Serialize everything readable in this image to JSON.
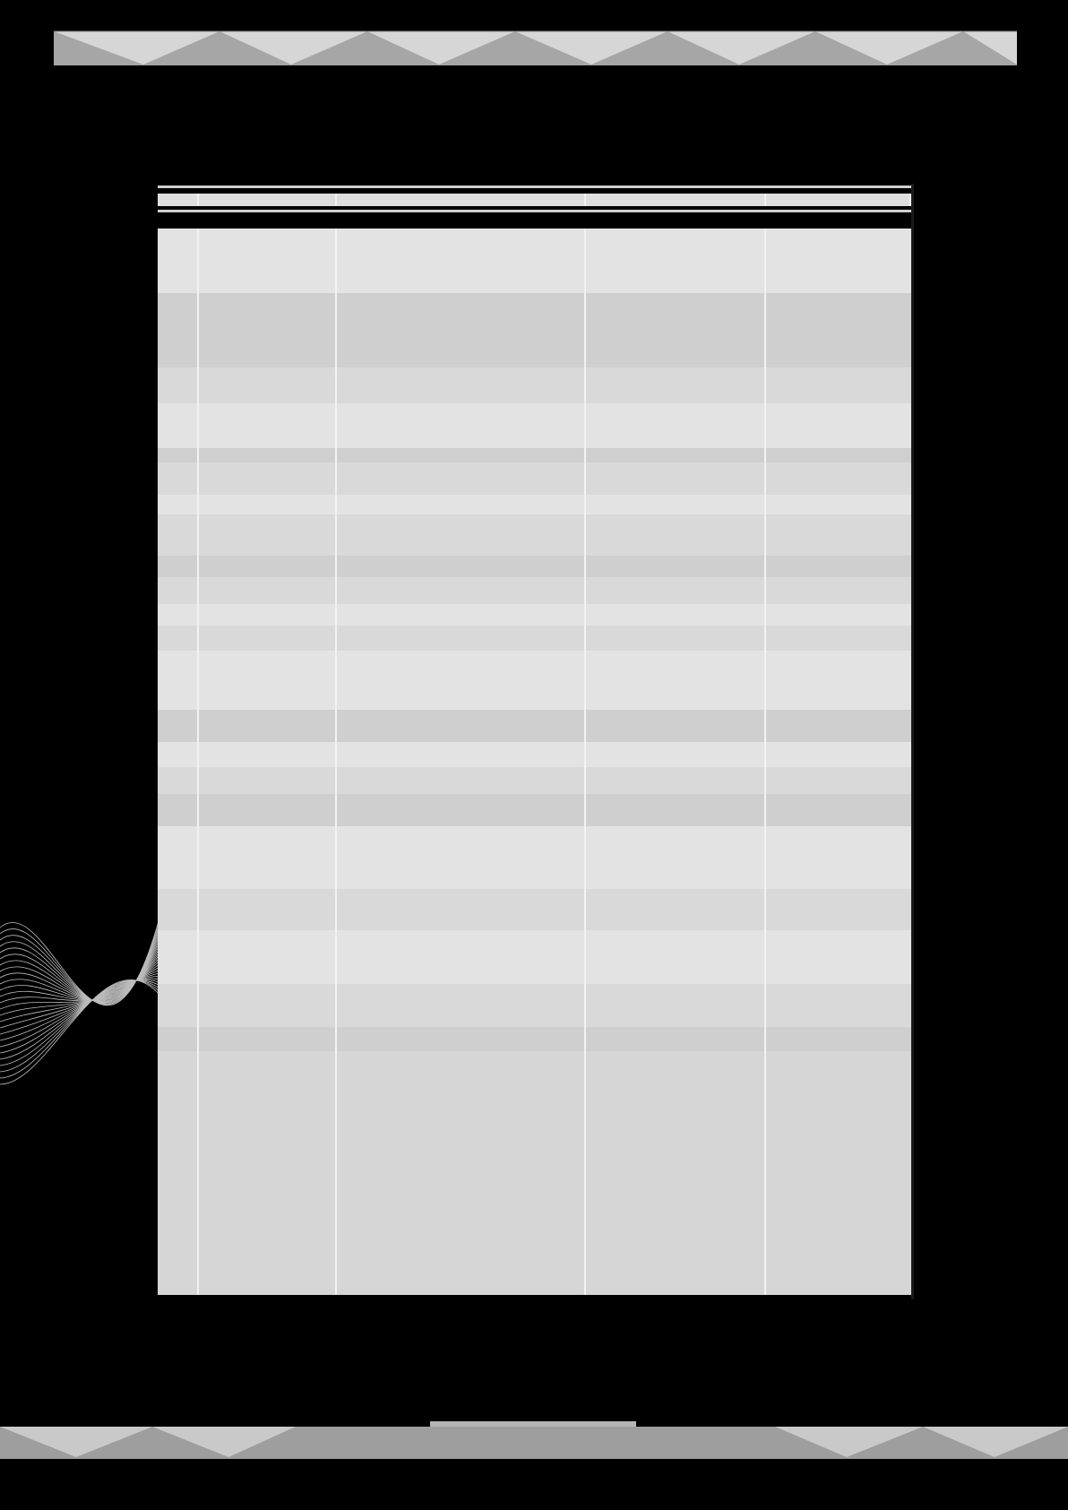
{
  "colors": {
    "background": "#000000",
    "band": "#a6a6a6",
    "band_light": "#d4d4d4",
    "table_light": "#e2e2e2",
    "table_dark": "#cfcfcf",
    "divider": "#f2f2f2"
  },
  "decor": {
    "top_band_icon": "triangle-zigzag-band",
    "bottom_band_icon": "triangle-zigzag-band",
    "corner_icon": "line-wave-pattern"
  },
  "table": {
    "columns": [
      "",
      "",
      "",
      "",
      ""
    ],
    "rows": [
      {
        "shade": "light",
        "cells": [
          "",
          "",
          "",
          "",
          ""
        ]
      },
      {
        "shade": "light",
        "cells": [
          "",
          "",
          "",
          "",
          ""
        ]
      },
      {
        "shade": "dark",
        "cells": [
          "",
          "",
          "",
          "",
          ""
        ]
      },
      {
        "shade": "dark",
        "cells": [
          "",
          "",
          "",
          "",
          ""
        ]
      },
      {
        "shade": "mid",
        "cells": [
          "",
          "",
          "",
          "",
          ""
        ]
      },
      {
        "shade": "light",
        "cells": [
          "",
          "",
          "",
          "",
          ""
        ]
      },
      {
        "shade": "dark",
        "cells": [
          "",
          "",
          "",
          "",
          ""
        ]
      },
      {
        "shade": "mid",
        "cells": [
          "",
          "",
          "",
          "",
          ""
        ]
      },
      {
        "shade": "light",
        "cells": [
          "",
          "",
          "",
          "",
          ""
        ]
      },
      {
        "shade": "mid",
        "cells": [
          "",
          "",
          "",
          "",
          ""
        ]
      },
      {
        "shade": "dark",
        "cells": [
          "",
          "",
          "",
          "",
          ""
        ]
      },
      {
        "shade": "mid",
        "cells": [
          "",
          "",
          "",
          "",
          ""
        ]
      },
      {
        "shade": "light",
        "cells": [
          "",
          "",
          "",
          "",
          ""
        ]
      },
      {
        "shade": "mid",
        "cells": [
          "",
          "",
          "",
          "",
          ""
        ]
      },
      {
        "shade": "light",
        "cells": [
          "",
          "",
          "",
          "",
          ""
        ]
      },
      {
        "shade": "dark",
        "cells": [
          "",
          "",
          "",
          "",
          ""
        ]
      },
      {
        "shade": "light",
        "cells": [
          "",
          "",
          "",
          "",
          ""
        ]
      },
      {
        "shade": "mid",
        "cells": [
          "",
          "",
          "",
          "",
          ""
        ]
      },
      {
        "shade": "dark",
        "cells": [
          "",
          "",
          "",
          "",
          ""
        ]
      },
      {
        "shade": "light",
        "cells": [
          "",
          "",
          "",
          "",
          ""
        ]
      },
      {
        "shade": "mid",
        "cells": [
          "",
          "",
          "",
          "",
          ""
        ]
      },
      {
        "shade": "light",
        "cells": [
          "",
          "",
          "",
          "",
          ""
        ]
      },
      {
        "shade": "mid",
        "cells": [
          "",
          "",
          "",
          "",
          ""
        ]
      },
      {
        "shade": "dark",
        "cells": [
          "",
          "",
          "",
          "",
          ""
        ]
      }
    ]
  }
}
